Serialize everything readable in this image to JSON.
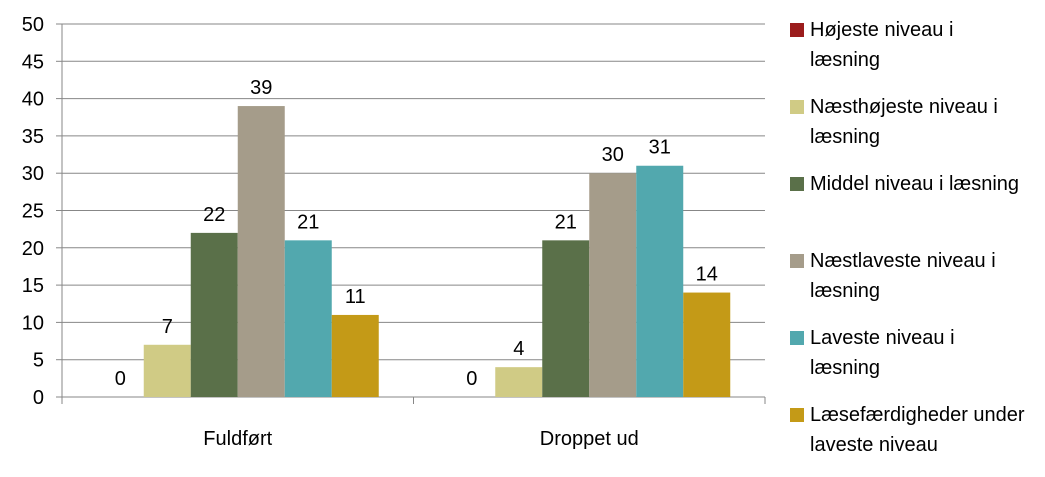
{
  "chart_data": {
    "type": "bar",
    "categories": [
      "Fuldført",
      "Droppet ud"
    ],
    "series": [
      {
        "name": "Højeste niveau i læsning",
        "values": [
          0,
          0
        ],
        "color": "#9b1c1c"
      },
      {
        "name": "Næsthøjeste niveau i læsning",
        "values": [
          7,
          4
        ],
        "color": "#d0cb85"
      },
      {
        "name": "Middel niveau i læsning",
        "values": [
          22,
          21
        ],
        "color": "#5a7049"
      },
      {
        "name": "Næstlaveste niveau i læsning",
        "values": [
          39,
          30
        ],
        "color": "#a59c8a"
      },
      {
        "name": "Laveste niveau i læsning",
        "values": [
          21,
          31
        ],
        "color": "#52a8ae"
      },
      {
        "name": "Læsefærdigheder under laveste niveau",
        "values": [
          11,
          14
        ],
        "color": "#c49a17"
      }
    ],
    "ylim": [
      0,
      50
    ],
    "yticks": [
      0,
      5,
      10,
      15,
      20,
      25,
      30,
      35,
      40,
      45,
      50
    ],
    "grid": true,
    "legend": "right"
  }
}
